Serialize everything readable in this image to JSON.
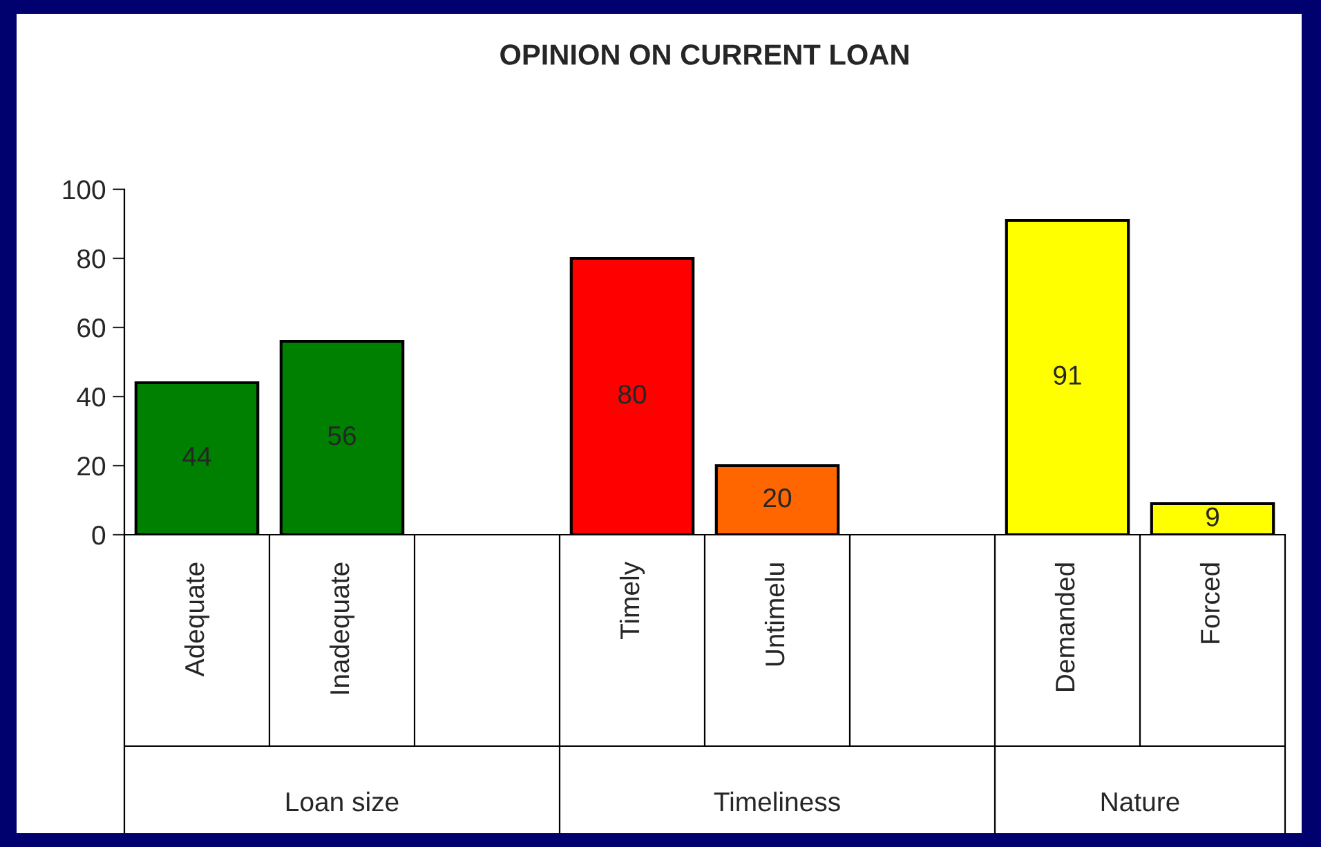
{
  "chart_data": {
    "type": "bar",
    "title": "OPINION ON CURRENT LOAN",
    "categories": [
      "Adequate",
      "Inadequate",
      null,
      "Timely",
      "Untimelu",
      null,
      "Demanded",
      "Forced"
    ],
    "values": [
      44,
      56,
      null,
      80,
      20,
      null,
      91,
      9
    ],
    "colors": [
      "#008000",
      "#008000",
      "#ffffff",
      "#ff0000",
      "#ff6600",
      "#ffffff",
      "#ffff00",
      "#ffff00"
    ],
    "ylim": [
      0,
      100
    ],
    "yticks": [
      0,
      20,
      40,
      60,
      80,
      100
    ],
    "data_labels": true,
    "grid": false,
    "legend": false,
    "annotations": [
      "Loan size",
      "Timeliness",
      "Nature"
    ]
  }
}
